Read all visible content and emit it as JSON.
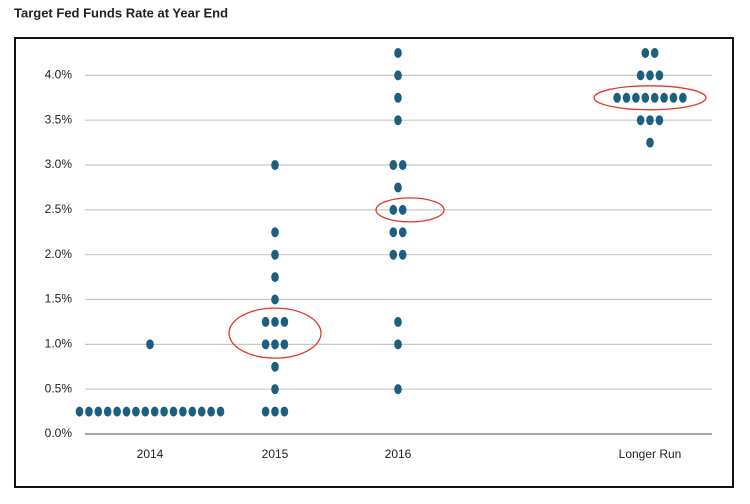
{
  "chart_data": {
    "type": "dotplot",
    "title": "Target Fed Funds Rate at Year End",
    "categories": [
      "2014",
      "2015",
      "2016",
      "Longer Run"
    ],
    "dots": [
      [
        0.25,
        0.25,
        0.25,
        0.25,
        0.25,
        0.25,
        0.25,
        0.25,
        0.25,
        0.25,
        0.25,
        0.25,
        0.25,
        0.25,
        0.25,
        0.25,
        1.0
      ],
      [
        3.0,
        2.25,
        2.0,
        1.75,
        1.5,
        1.25,
        1.25,
        1.25,
        1.0,
        1.0,
        1.0,
        0.75,
        0.5,
        0.25,
        0.25,
        0.25
      ],
      [
        4.25,
        4.0,
        3.75,
        3.5,
        3.0,
        3.0,
        2.75,
        2.5,
        2.5,
        2.25,
        2.25,
        2.0,
        2.0,
        1.25,
        1.0,
        0.5
      ],
      [
        4.25,
        4.25,
        4.0,
        4.0,
        4.0,
        3.75,
        3.75,
        3.75,
        3.75,
        3.75,
        3.75,
        3.75,
        3.75,
        3.5,
        3.5,
        3.5,
        3.25
      ]
    ],
    "highlighted": [
      null,
      1.125,
      2.5,
      3.75
    ],
    "color": "#1c5f7e",
    "highlight_color": "#e0392b",
    "ylim": [
      0,
      4.35
    ],
    "yticks": [
      {
        "value": 0,
        "label": "0.0%"
      },
      {
        "value": 0.5,
        "label": "0.5%"
      },
      {
        "value": 1,
        "label": "1.0%"
      },
      {
        "value": 1.5,
        "label": "1.5%"
      },
      {
        "value": 2,
        "label": "2.0%"
      },
      {
        "value": 2.5,
        "label": "2.5%"
      },
      {
        "value": 3,
        "label": "3.0%"
      },
      {
        "value": 3.5,
        "label": "3.5%"
      },
      {
        "value": 4,
        "label": "4.0%"
      }
    ],
    "grid": true
  }
}
